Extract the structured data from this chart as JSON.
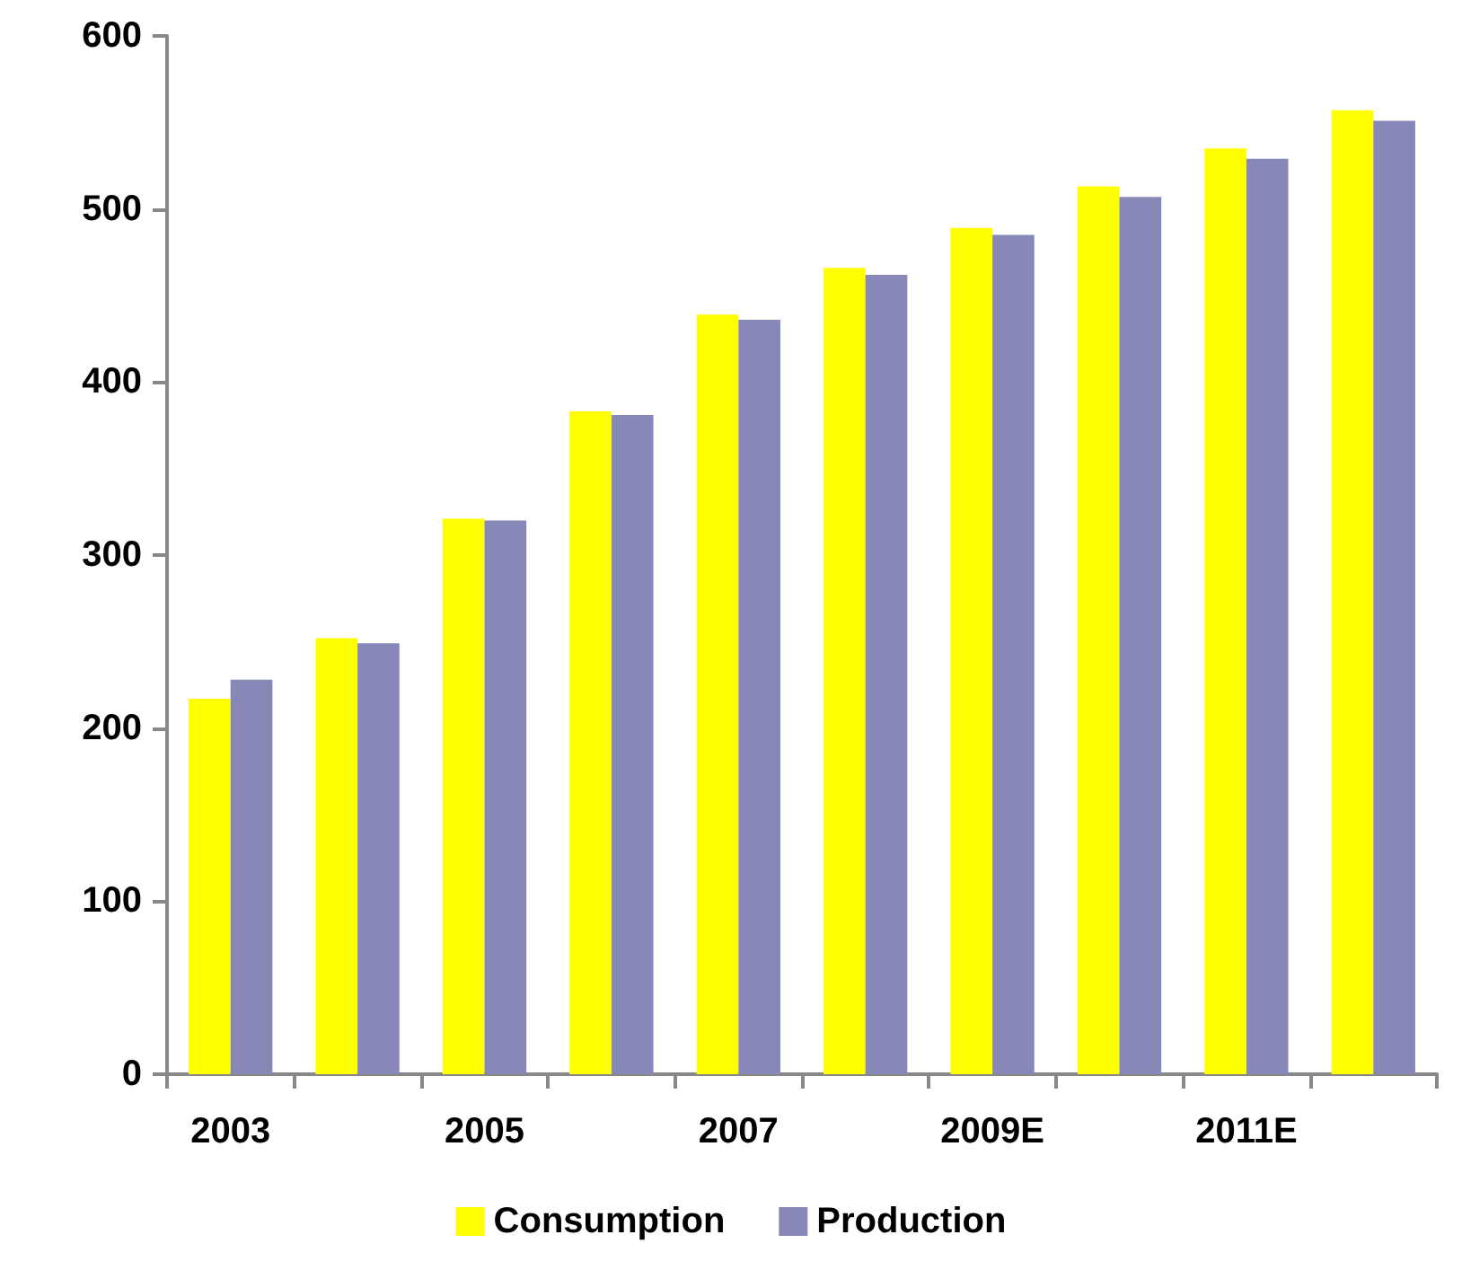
{
  "chart_data": {
    "type": "bar",
    "categories": [
      "2003",
      null,
      "2005",
      null,
      "2007",
      null,
      "2009E",
      null,
      "2011E",
      null
    ],
    "series": [
      {
        "name": "Consumption",
        "color": "#ffff00",
        "values": [
          217,
          252,
          321,
          383,
          439,
          466,
          489,
          513,
          535,
          557
        ]
      },
      {
        "name": "Production",
        "color": "#8888b8",
        "values": [
          228,
          249,
          320,
          381,
          436,
          462,
          485,
          507,
          529,
          551
        ]
      }
    ],
    "ylim": [
      0,
      600
    ],
    "yticks": [
      0,
      100,
      200,
      300,
      400,
      500,
      600
    ],
    "grid": false,
    "legend": "bottom"
  }
}
